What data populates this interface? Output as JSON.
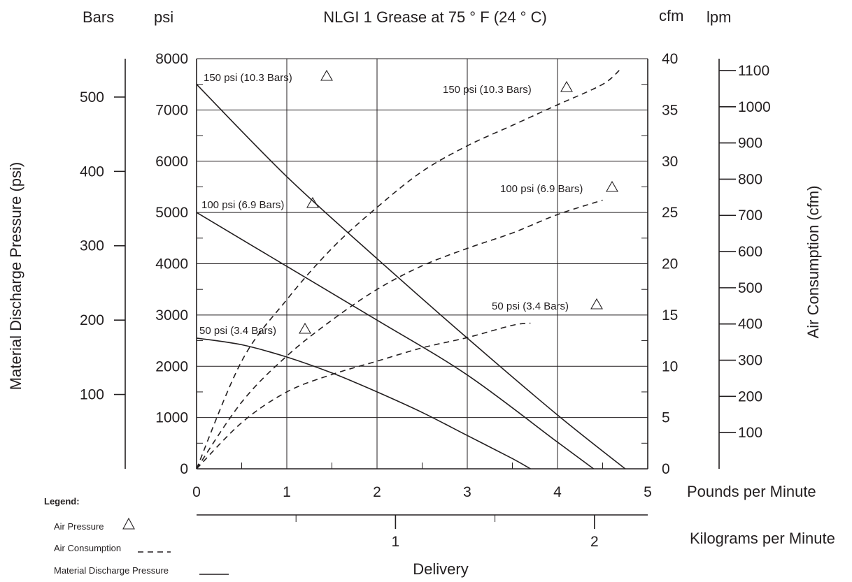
{
  "chart_data": {
    "type": "line",
    "title": "NLGI 1 Grease at 75 ° F (24 ° C)",
    "x_axis": {
      "label": "Pounds per Minute",
      "range": [
        0,
        5
      ],
      "ticks": [
        "0",
        "1",
        "2",
        "3",
        "4",
        "5"
      ]
    },
    "x2_axis": {
      "label": "Kilograms per Minute",
      "range": [
        0,
        2.268
      ],
      "ticks": [
        "1",
        "2"
      ]
    },
    "delivery_label": "Delivery",
    "left_axes": {
      "label": "Material Discharge Pressure (psi)",
      "psi": {
        "unit": "psi",
        "range": [
          0,
          8000
        ],
        "ticks": [
          "0",
          "1000",
          "2000",
          "3000",
          "4000",
          "5000",
          "6000",
          "7000",
          "8000"
        ]
      },
      "bars": {
        "unit": "Bars",
        "range": [
          0,
          551.6
        ],
        "ticks": [
          "100",
          "200",
          "300",
          "400",
          "500"
        ]
      }
    },
    "right_axes": {
      "label": "Air Consumption (cfm)",
      "cfm": {
        "unit": "cfm",
        "range": [
          0,
          40
        ],
        "ticks": [
          "0",
          "5",
          "10",
          "15",
          "20",
          "25",
          "30",
          "35",
          "40"
        ]
      },
      "lpm": {
        "unit": "lpm",
        "range": [
          0,
          1132.7
        ],
        "ticks": [
          "100",
          "200",
          "300",
          "400",
          "500",
          "600",
          "700",
          "800",
          "900",
          "1000",
          "1100"
        ]
      }
    },
    "grid": true,
    "series": [
      {
        "name": "150 psi (10.3 Bars)",
        "kind": "material",
        "axis": "psi",
        "points": [
          [
            0,
            7500
          ],
          [
            1,
            5700
          ],
          [
            2,
            4100
          ],
          [
            3,
            2550
          ],
          [
            4,
            1050
          ],
          [
            4.75,
            0
          ]
        ]
      },
      {
        "name": "100 psi (6.9 Bars)",
        "kind": "material",
        "axis": "psi",
        "points": [
          [
            0,
            5000
          ],
          [
            1,
            3950
          ],
          [
            2,
            2900
          ],
          [
            3,
            1830
          ],
          [
            4,
            520
          ],
          [
            4.4,
            0
          ]
        ]
      },
      {
        "name": "50 psi (3.4 Bars)",
        "kind": "material",
        "axis": "psi",
        "points": [
          [
            0,
            2550
          ],
          [
            0.5,
            2420
          ],
          [
            1,
            2180
          ],
          [
            1.5,
            1870
          ],
          [
            2,
            1500
          ],
          [
            2.5,
            1100
          ],
          [
            3,
            650
          ],
          [
            3.5,
            200
          ],
          [
            3.7,
            0
          ]
        ]
      },
      {
        "name": "150 psi (10.3 Bars)",
        "kind": "air",
        "axis": "cfm",
        "points": [
          [
            0,
            0
          ],
          [
            0.5,
            10.5
          ],
          [
            1,
            16.5
          ],
          [
            1.5,
            21.5
          ],
          [
            2,
            25.5
          ],
          [
            2.5,
            29
          ],
          [
            3,
            31.5
          ],
          [
            3.5,
            33.5
          ],
          [
            4,
            35.5
          ],
          [
            4.5,
            37.5
          ],
          [
            4.7,
            39
          ]
        ]
      },
      {
        "name": "100 psi (6.9 Bars)",
        "kind": "air",
        "axis": "cfm",
        "points": [
          [
            0,
            0
          ],
          [
            0.5,
            6.5
          ],
          [
            1,
            11
          ],
          [
            1.5,
            14.5
          ],
          [
            2,
            17.5
          ],
          [
            2.5,
            19.8
          ],
          [
            3,
            21.5
          ],
          [
            3.5,
            23
          ],
          [
            4,
            24.8
          ],
          [
            4.5,
            26.2
          ]
        ]
      },
      {
        "name": "50 psi (3.4 Bars)",
        "kind": "air",
        "axis": "cfm",
        "points": [
          [
            0,
            0
          ],
          [
            0.5,
            4.5
          ],
          [
            1,
            7.5
          ],
          [
            1.5,
            9.2
          ],
          [
            2,
            10.5
          ],
          [
            2.5,
            11.8
          ],
          [
            3,
            12.8
          ],
          [
            3.5,
            14
          ],
          [
            3.7,
            14.2
          ]
        ]
      }
    ],
    "annotations": [
      {
        "text": "150 psi (10.3 Bars)",
        "for": "material-150"
      },
      {
        "text": "100 psi (6.9 Bars)",
        "for": "material-100"
      },
      {
        "text": "50 psi (3.4 Bars)",
        "for": "material-50"
      },
      {
        "text": "150 psi (10.3 Bars)",
        "for": "air-150"
      },
      {
        "text": "100 psi (6.9 Bars)",
        "for": "air-100"
      },
      {
        "text": "50 psi (3.4 Bars)",
        "for": "air-50"
      }
    ],
    "legend": {
      "placement": "bottom-left",
      "title": "Legend:",
      "items": [
        {
          "label": "Air Pressure",
          "symbol": "triangle"
        },
        {
          "label": "Air Consumption",
          "symbol": "dashed-line"
        },
        {
          "label": "Material Discharge Pressure",
          "symbol": "solid-line"
        }
      ]
    }
  }
}
